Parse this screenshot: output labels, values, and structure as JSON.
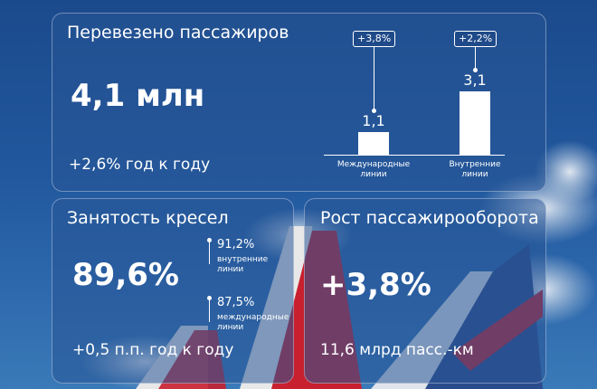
{
  "passengers": {
    "title": "Перевезено пассажиров",
    "value": "4,1 млн",
    "yoy": "+2,6% год к году"
  },
  "load_factor": {
    "title": "Занятость кресел",
    "value": "89,6%",
    "yoy": "+0,5 п.п. год к году",
    "domestic_value": "91,2%",
    "domestic_label_1": "внутренние",
    "domestic_label_2": "линии",
    "intl_value": "87,5%",
    "intl_label_1": "международные",
    "intl_label_2": "линии"
  },
  "traffic": {
    "title": "Рост пассажирооборота",
    "value": "+3,8%",
    "sub": "11,6 млрд пасс.-км"
  },
  "chart_data": {
    "type": "bar",
    "categories": [
      "Международные линии",
      "Внутренние линии"
    ],
    "category_lines": [
      [
        "Международные",
        "линии"
      ],
      [
        "Внутренние",
        "линии"
      ]
    ],
    "values": [
      1.1,
      3.1
    ],
    "value_labels": [
      "1,1",
      "3,1"
    ],
    "growth_labels": [
      "+3,8%",
      "+2,2%"
    ],
    "bar_color": "#ffffff"
  },
  "colors": {
    "background": "#21589e",
    "accent": "#ffffff",
    "tail_red": "#c8202e"
  }
}
